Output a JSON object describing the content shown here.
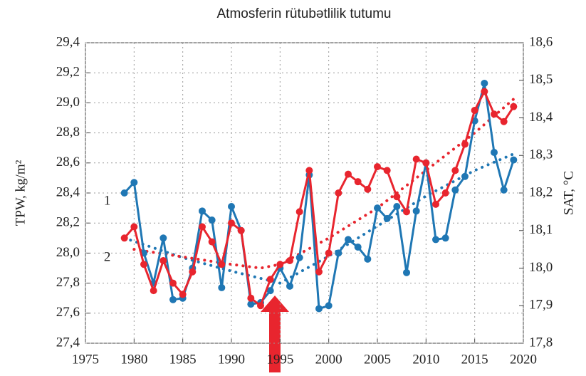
{
  "chart_data": {
    "type": "line",
    "title": "Atmosferin rütubətlilik tutumu",
    "ylabel": "TPW,  kg/m²",
    "y2label": "SAT, °C",
    "xlim": [
      1975,
      2020
    ],
    "xticks": [
      1975,
      1980,
      1985,
      1990,
      1995,
      2000,
      2005,
      2010,
      2015,
      2020
    ],
    "ylim": [
      27.4,
      29.4
    ],
    "yticks": [
      {
        "value": 27.4,
        "label": "27,4"
      },
      {
        "value": 27.6,
        "label": "27,6"
      },
      {
        "value": 27.8,
        "label": "27,8"
      },
      {
        "value": 28.0,
        "label": "28,0"
      },
      {
        "value": 28.2,
        "label": "28,2"
      },
      {
        "value": 28.4,
        "label": "28,4"
      },
      {
        "value": 28.6,
        "label": "28,6"
      },
      {
        "value": 28.8,
        "label": "28,8"
      },
      {
        "value": 29.0,
        "label": "29,0"
      },
      {
        "value": 29.2,
        "label": "29,2"
      },
      {
        "value": 29.4,
        "label": "29,4"
      }
    ],
    "y2lim": [
      17.8,
      18.6
    ],
    "y2ticks": [
      {
        "value": 17.8,
        "label": "17,8"
      },
      {
        "value": 17.9,
        "label": "17,9"
      },
      {
        "value": 18.0,
        "label": "18,0"
      },
      {
        "value": 18.1,
        "label": "18,1"
      },
      {
        "value": 18.2,
        "label": "18,2"
      },
      {
        "value": 18.3,
        "label": "18,3"
      },
      {
        "value": 18.4,
        "label": "18,4"
      },
      {
        "value": 18.5,
        "label": "18,5"
      },
      {
        "value": 18.6,
        "label": "18,6"
      }
    ],
    "grid": true,
    "series": [
      {
        "name": "1",
        "color": "#1f77b4",
        "style": "solid",
        "markers": true,
        "x": [
          1979,
          1980,
          1981,
          1982,
          1983,
          1984,
          1985,
          1986,
          1987,
          1988,
          1989,
          1990,
          1991,
          1992,
          1993,
          1994,
          1995,
          1996,
          1997,
          1998,
          1999,
          2000,
          2001,
          2002,
          2003,
          2004,
          2005,
          2006,
          2007,
          2008,
          2009,
          2010,
          2011,
          2012,
          2013,
          2014,
          2015,
          2016,
          2017,
          2018,
          2019
        ],
        "values": [
          28.4,
          28.47,
          28.0,
          27.8,
          28.1,
          27.69,
          27.7,
          27.9,
          28.28,
          28.22,
          27.77,
          28.31,
          28.15,
          27.66,
          27.67,
          27.75,
          27.9,
          27.78,
          27.97,
          28.52,
          27.63,
          27.65,
          28.0,
          28.09,
          28.04,
          27.96,
          28.3,
          28.23,
          28.31,
          27.87,
          28.28,
          28.6,
          28.09,
          28.1,
          28.42,
          28.51,
          28.88,
          29.13,
          28.67,
          28.42,
          28.62
        ]
      },
      {
        "name": "2",
        "color": "#e8252e",
        "style": "solid",
        "markers": true,
        "axis": "y2",
        "x": [
          1979,
          1980,
          1981,
          1982,
          1983,
          1984,
          1985,
          1986,
          1987,
          1988,
          1989,
          1990,
          1991,
          1992,
          1993,
          1994,
          1995,
          1996,
          1997,
          1998,
          1999,
          2000,
          2001,
          2002,
          2003,
          2004,
          2005,
          2006,
          2007,
          2008,
          2009,
          2010,
          2011,
          2012,
          2013,
          2014,
          2015,
          2016,
          2017,
          2018,
          2019
        ],
        "values": [
          18.08,
          18.11,
          18.01,
          17.94,
          18.02,
          17.96,
          17.93,
          17.99,
          18.11,
          18.07,
          18.01,
          18.12,
          18.1,
          17.92,
          17.9,
          17.97,
          18.01,
          18.02,
          18.15,
          18.26,
          17.99,
          18.04,
          18.2,
          18.25,
          18.23,
          18.21,
          18.27,
          18.26,
          18.19,
          18.15,
          18.29,
          18.28,
          18.17,
          18.2,
          18.26,
          18.33,
          18.42,
          18.47,
          18.41,
          18.39,
          18.43
        ]
      },
      {
        "color": "#1f77b4",
        "style": "dotted",
        "x": [
          1979,
          1985,
          1990,
          1995,
          2000,
          2005,
          2010,
          2015,
          2019
        ],
        "values": [
          28.1,
          27.97,
          27.88,
          27.8,
          27.98,
          28.18,
          28.38,
          28.55,
          28.66
        ]
      },
      {
        "color": "#e8252e",
        "style": "dotted",
        "axis": "y2",
        "x": [
          1980,
          1985,
          1990,
          1993,
          1995,
          2000,
          2005,
          2010,
          2015,
          2019
        ],
        "values": [
          18.05,
          18.03,
          18.01,
          18.0,
          18.01,
          18.08,
          18.16,
          18.26,
          18.36,
          18.45
        ]
      }
    ]
  }
}
